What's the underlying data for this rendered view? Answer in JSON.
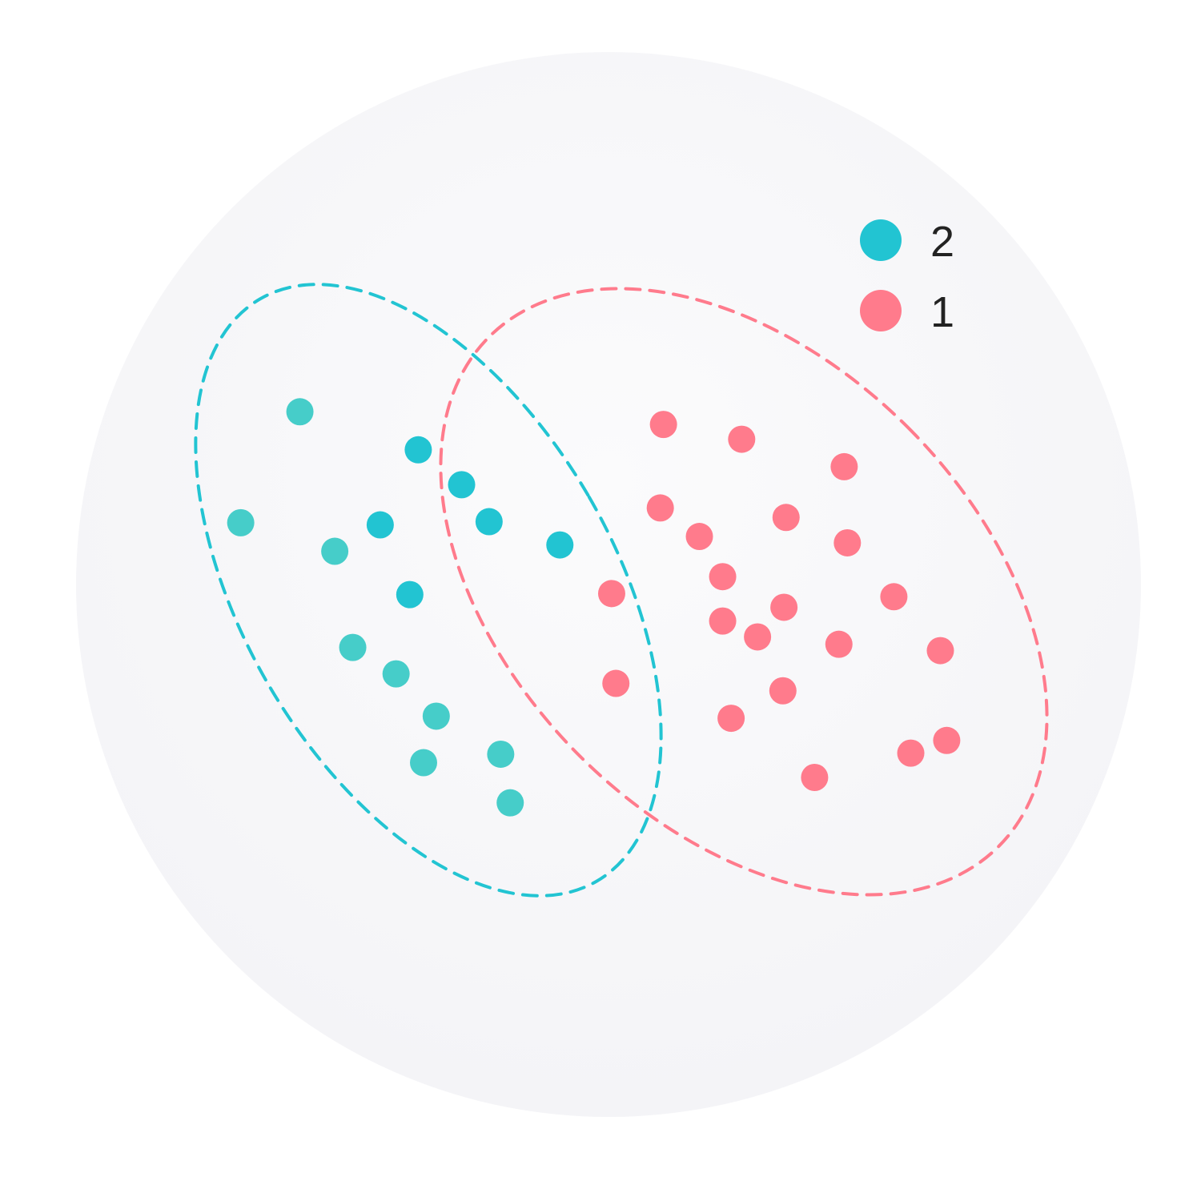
{
  "chart_data": {
    "type": "scatter",
    "title": "",
    "xlabel": "",
    "ylabel": "",
    "axes_visible": false,
    "grid": false,
    "legend_position": "top-right",
    "xlim": [
      0,
      100
    ],
    "ylim": [
      0,
      100
    ],
    "background_color": "#f8f8fa",
    "series": [
      {
        "name": "2",
        "color": "#22c4d2",
        "color_alt": "#46cdc9",
        "enclosure": "dashed-ellipse",
        "points": [
          {
            "x": 20.8,
            "y": 67.1,
            "shade": "alt"
          },
          {
            "x": 32.0,
            "y": 63.5
          },
          {
            "x": 36.1,
            "y": 60.2
          },
          {
            "x": 15.2,
            "y": 56.6,
            "shade": "alt"
          },
          {
            "x": 28.4,
            "y": 56.4
          },
          {
            "x": 38.7,
            "y": 56.7
          },
          {
            "x": 24.1,
            "y": 53.9,
            "shade": "alt"
          },
          {
            "x": 45.4,
            "y": 54.5
          },
          {
            "x": 31.2,
            "y": 49.8
          },
          {
            "x": 25.8,
            "y": 44.8,
            "shade": "alt"
          },
          {
            "x": 29.9,
            "y": 42.3,
            "shade": "alt"
          },
          {
            "x": 33.7,
            "y": 38.3,
            "shade": "alt"
          },
          {
            "x": 32.5,
            "y": 33.9,
            "shade": "alt"
          },
          {
            "x": 39.8,
            "y": 34.7,
            "shade": "alt"
          },
          {
            "x": 40.7,
            "y": 30.1,
            "shade": "alt"
          }
        ]
      },
      {
        "name": "1",
        "color": "#ff7b8c",
        "color_alt": "#ff7b8c",
        "enclosure": "dashed-ellipse",
        "points": [
          {
            "x": 55.2,
            "y": 65.9
          },
          {
            "x": 62.6,
            "y": 64.5
          },
          {
            "x": 72.3,
            "y": 61.9
          },
          {
            "x": 54.9,
            "y": 58.0
          },
          {
            "x": 66.8,
            "y": 57.1
          },
          {
            "x": 58.6,
            "y": 55.3
          },
          {
            "x": 72.6,
            "y": 54.7
          },
          {
            "x": 60.8,
            "y": 51.5
          },
          {
            "x": 50.3,
            "y": 49.9
          },
          {
            "x": 66.6,
            "y": 48.6
          },
          {
            "x": 77.0,
            "y": 49.6
          },
          {
            "x": 60.8,
            "y": 47.3
          },
          {
            "x": 64.1,
            "y": 45.8
          },
          {
            "x": 71.8,
            "y": 45.1
          },
          {
            "x": 81.4,
            "y": 44.5
          },
          {
            "x": 50.7,
            "y": 41.4
          },
          {
            "x": 66.5,
            "y": 40.7
          },
          {
            "x": 61.6,
            "y": 38.1
          },
          {
            "x": 82.0,
            "y": 36.0
          },
          {
            "x": 78.6,
            "y": 34.8
          },
          {
            "x": 69.5,
            "y": 32.5
          }
        ]
      }
    ],
    "legend": [
      {
        "label": "2",
        "color": "#22c4d2"
      },
      {
        "label": "1",
        "color": "#ff7b8c"
      }
    ]
  }
}
